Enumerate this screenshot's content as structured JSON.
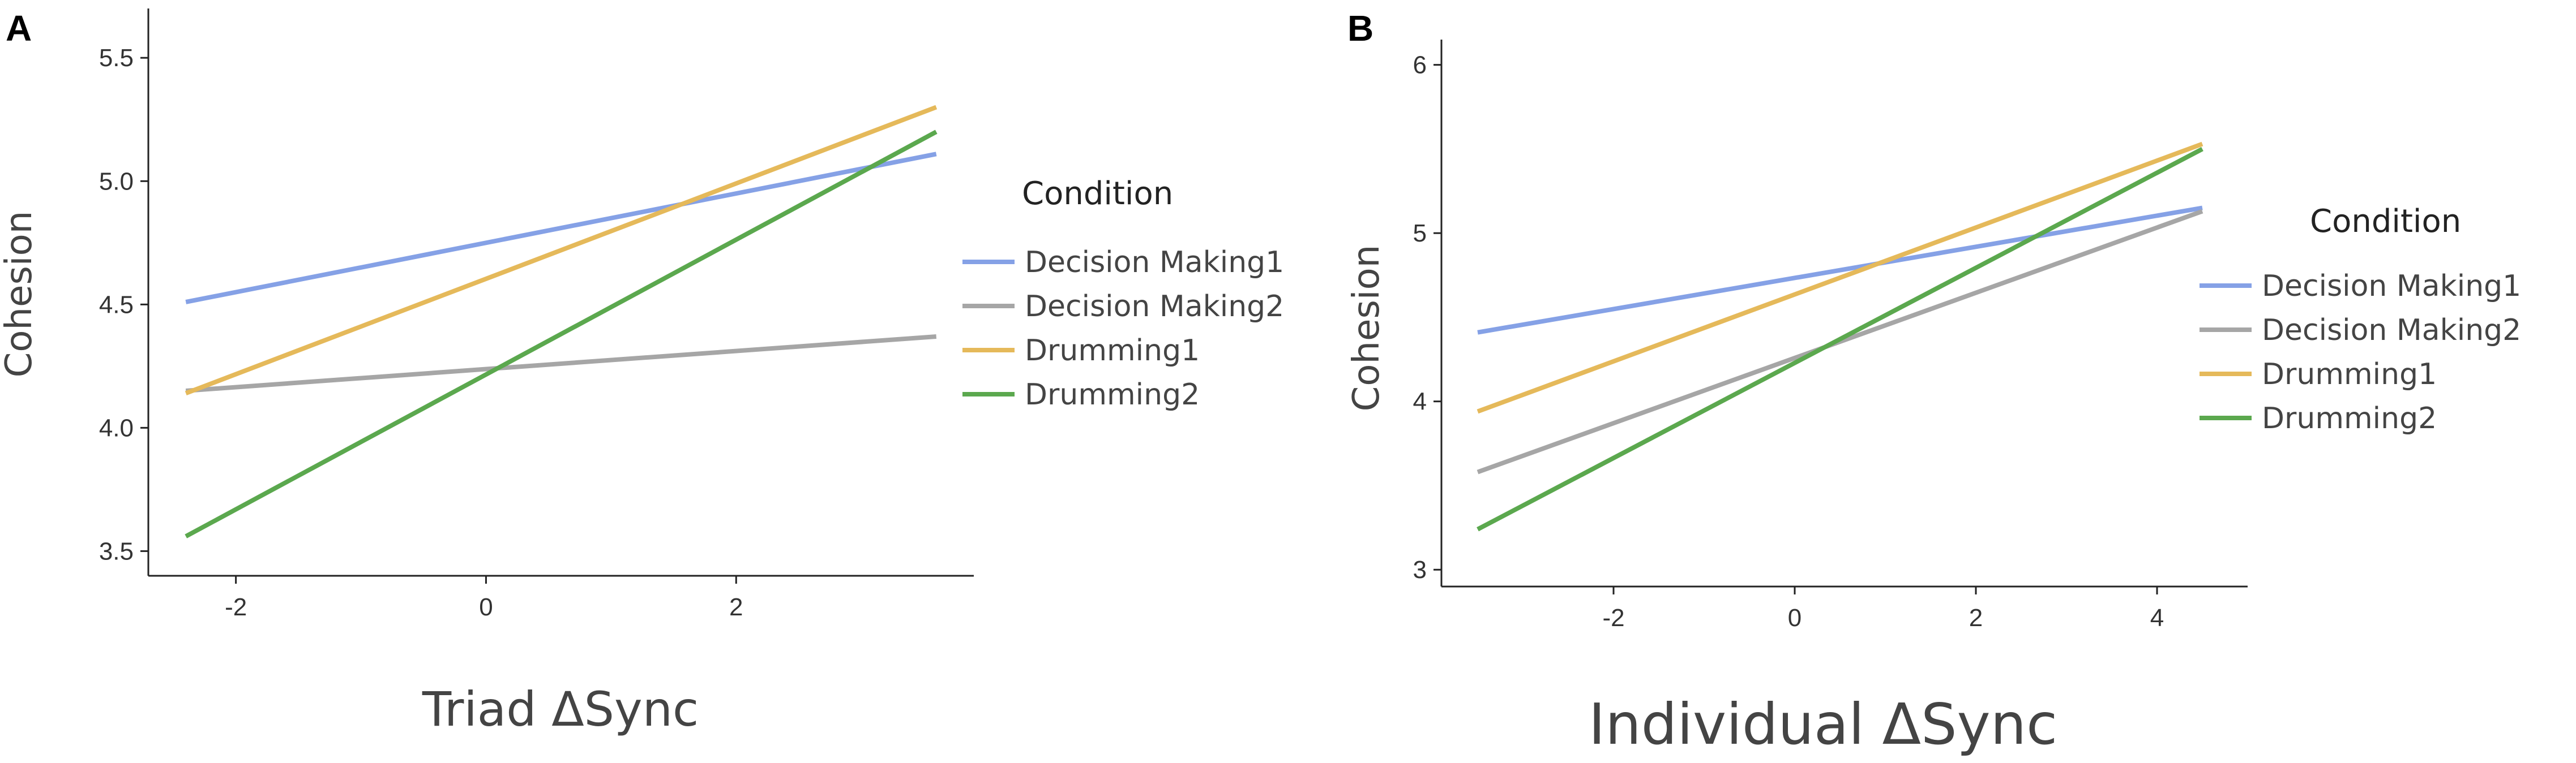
{
  "chart_data": [
    {
      "type": "line",
      "panel": "A",
      "xlabel": "Triad ΔSync",
      "ylabel": "Cohesion",
      "xlim": [
        -2.7,
        3.9
      ],
      "ylim": [
        3.4,
        5.7
      ],
      "xticks": [
        -2,
        0,
        2
      ],
      "xtick_labels": [
        "-2",
        "0",
        "2"
      ],
      "yticks": [
        3.5,
        4.0,
        4.5,
        5.0,
        5.5
      ],
      "ytick_labels": [
        "3.5",
        "4.0",
        "4.5",
        "5.0",
        "5.5"
      ],
      "legend_title": "Condition",
      "legend_position": "right",
      "series": [
        {
          "name": "Decision Making1",
          "color": "#85a1e6",
          "x": [
            -2.4,
            3.6
          ],
          "y": [
            4.51,
            5.11
          ]
        },
        {
          "name": "Decision Making2",
          "color": "#a6a6a6",
          "x": [
            -2.4,
            3.6
          ],
          "y": [
            4.15,
            4.37
          ]
        },
        {
          "name": "Drumming1",
          "color": "#e5b95a",
          "x": [
            -2.4,
            3.6
          ],
          "y": [
            4.14,
            5.3
          ]
        },
        {
          "name": "Drumming2",
          "color": "#5ba84e",
          "x": [
            -2.4,
            3.6
          ],
          "y": [
            3.56,
            5.2
          ]
        }
      ]
    },
    {
      "type": "line",
      "panel": "B",
      "xlabel": "Individual ΔSync",
      "ylabel": "Cohesion",
      "xlim": [
        -3.9,
        5.0
      ],
      "ylim": [
        2.9,
        6.15
      ],
      "xticks": [
        -2,
        0,
        2,
        4
      ],
      "xtick_labels": [
        "-2",
        "0",
        "2",
        "4"
      ],
      "yticks": [
        3,
        4,
        5,
        6
      ],
      "ytick_labels": [
        "3",
        "4",
        "5",
        "6"
      ],
      "legend_title": "Condition",
      "legend_position": "right",
      "series": [
        {
          "name": "Decision Making1",
          "color": "#85a1e6",
          "x": [
            -3.5,
            4.5
          ],
          "y": [
            4.41,
            5.15
          ]
        },
        {
          "name": "Decision Making2",
          "color": "#a6a6a6",
          "x": [
            -3.5,
            4.5
          ],
          "y": [
            3.58,
            5.13
          ]
        },
        {
          "name": "Drumming1",
          "color": "#e5b95a",
          "x": [
            -3.5,
            4.5
          ],
          "y": [
            3.94,
            5.53
          ]
        },
        {
          "name": "Drumming2",
          "color": "#5ba84e",
          "x": [
            -3.5,
            4.5
          ],
          "y": [
            3.24,
            5.5
          ]
        }
      ]
    }
  ]
}
